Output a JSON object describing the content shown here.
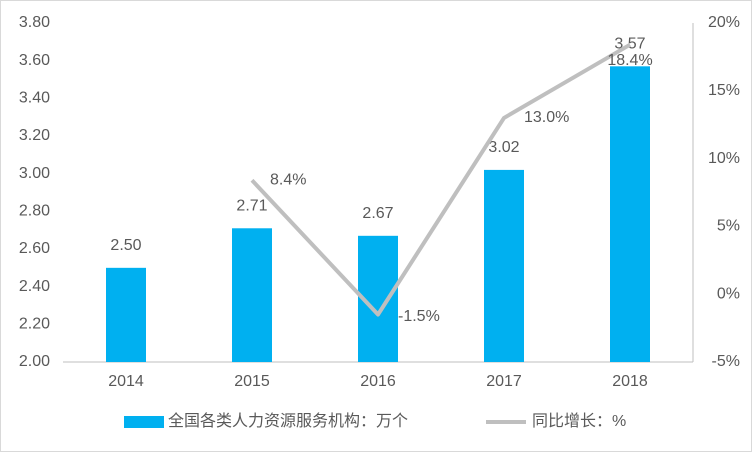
{
  "chart_data": {
    "type": "bar",
    "categories": [
      "2014",
      "2015",
      "2016",
      "2017",
      "2018"
    ],
    "series": [
      {
        "name": "全国各类人力资源服务机构：万个",
        "type": "bar",
        "color": "#00b0f0",
        "values": [
          2.5,
          2.71,
          2.67,
          3.02,
          3.57
        ],
        "value_labels": [
          "2.50",
          "2.71",
          "2.67",
          "3.02",
          "3.57"
        ]
      },
      {
        "name": "同比增长：%",
        "type": "line",
        "color": "#bfbfbf",
        "axis": "y2",
        "values": [
          null,
          8.4,
          -1.5,
          13.0,
          18.4
        ],
        "value_labels": [
          null,
          "8.4%",
          "-1.5%",
          "13.0%",
          "18.4%"
        ]
      }
    ],
    "ylim": [
      2.0,
      3.8
    ],
    "yticks": [
      {
        "value": 2.0,
        "label": "2.00"
      },
      {
        "value": 2.2,
        "label": "2.20"
      },
      {
        "value": 2.4,
        "label": "2.40"
      },
      {
        "value": 2.6,
        "label": "2.60"
      },
      {
        "value": 2.8,
        "label": "2.80"
      },
      {
        "value": 3.0,
        "label": "3.00"
      },
      {
        "value": 3.2,
        "label": "3.20"
      },
      {
        "value": 3.4,
        "label": "3.40"
      },
      {
        "value": 3.6,
        "label": "3.60"
      },
      {
        "value": 3.8,
        "label": "3.80"
      }
    ],
    "y2lim": [
      -5,
      20
    ],
    "y2ticks": [
      {
        "value": -5,
        "label": "-5%"
      },
      {
        "value": 0,
        "label": "0%"
      },
      {
        "value": 5,
        "label": "5%"
      },
      {
        "value": 10,
        "label": "10%"
      },
      {
        "value": 15,
        "label": "15%"
      },
      {
        "value": 20,
        "label": "20%"
      }
    ],
    "grid": false,
    "legend": "bottom"
  }
}
